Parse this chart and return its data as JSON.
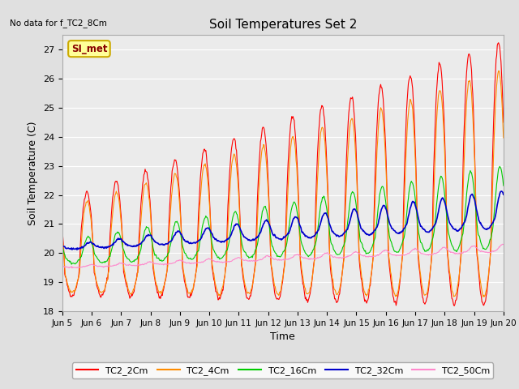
{
  "title": "Soil Temperatures Set 2",
  "top_left_text": "No data for f_TC2_8Cm",
  "xlabel": "Time",
  "ylabel": "Soil Temperature (C)",
  "ylim": [
    18.0,
    27.5
  ],
  "yticks": [
    18.0,
    19.0,
    20.0,
    21.0,
    22.0,
    23.0,
    24.0,
    25.0,
    26.0,
    27.0
  ],
  "x_start_day": 5,
  "x_end_day": 20,
  "x_tick_days": [
    5,
    6,
    7,
    8,
    9,
    10,
    11,
    12,
    13,
    14,
    15,
    16,
    17,
    18,
    19,
    20
  ],
  "bg_color": "#e0e0e0",
  "plot_bg_color": "#ebebeb",
  "series_colors": {
    "TC2_2Cm": "#ff0000",
    "TC2_4Cm": "#ff8c00",
    "TC2_16Cm": "#00cc00",
    "TC2_32Cm": "#0000cc",
    "TC2_50Cm": "#ff88cc"
  },
  "legend_label": "SI_met",
  "legend_bg": "#ffff99",
  "legend_border": "#ccaa00"
}
